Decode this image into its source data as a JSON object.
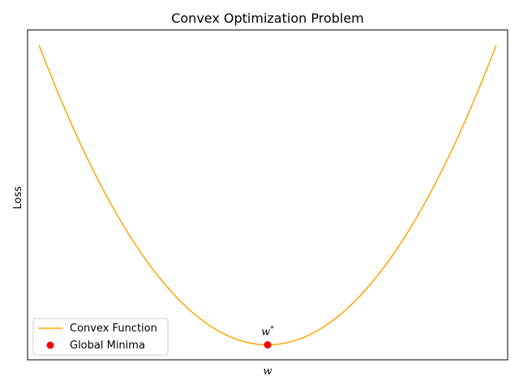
{
  "chart_data": {
    "type": "line",
    "title": "Convex Optimization Problem",
    "xlabel": "w",
    "ylabel": "Loss",
    "xlim": [
      -10.5,
      10.5
    ],
    "ylim": [
      -5,
      105
    ],
    "grid": false,
    "legend_position": "lower-left",
    "series": [
      {
        "name": "Convex Function",
        "kind": "line",
        "color": "#FFA500",
        "function": "w^2",
        "x_range": [
          -10,
          10
        ],
        "samples": 200
      },
      {
        "name": "Global Minima",
        "kind": "scatter",
        "color": "#FF0000",
        "points": [
          {
            "x": 0,
            "y": 0
          }
        ]
      }
    ],
    "annotations": [
      {
        "text": "w*",
        "x": 0,
        "y": 0
      }
    ]
  }
}
